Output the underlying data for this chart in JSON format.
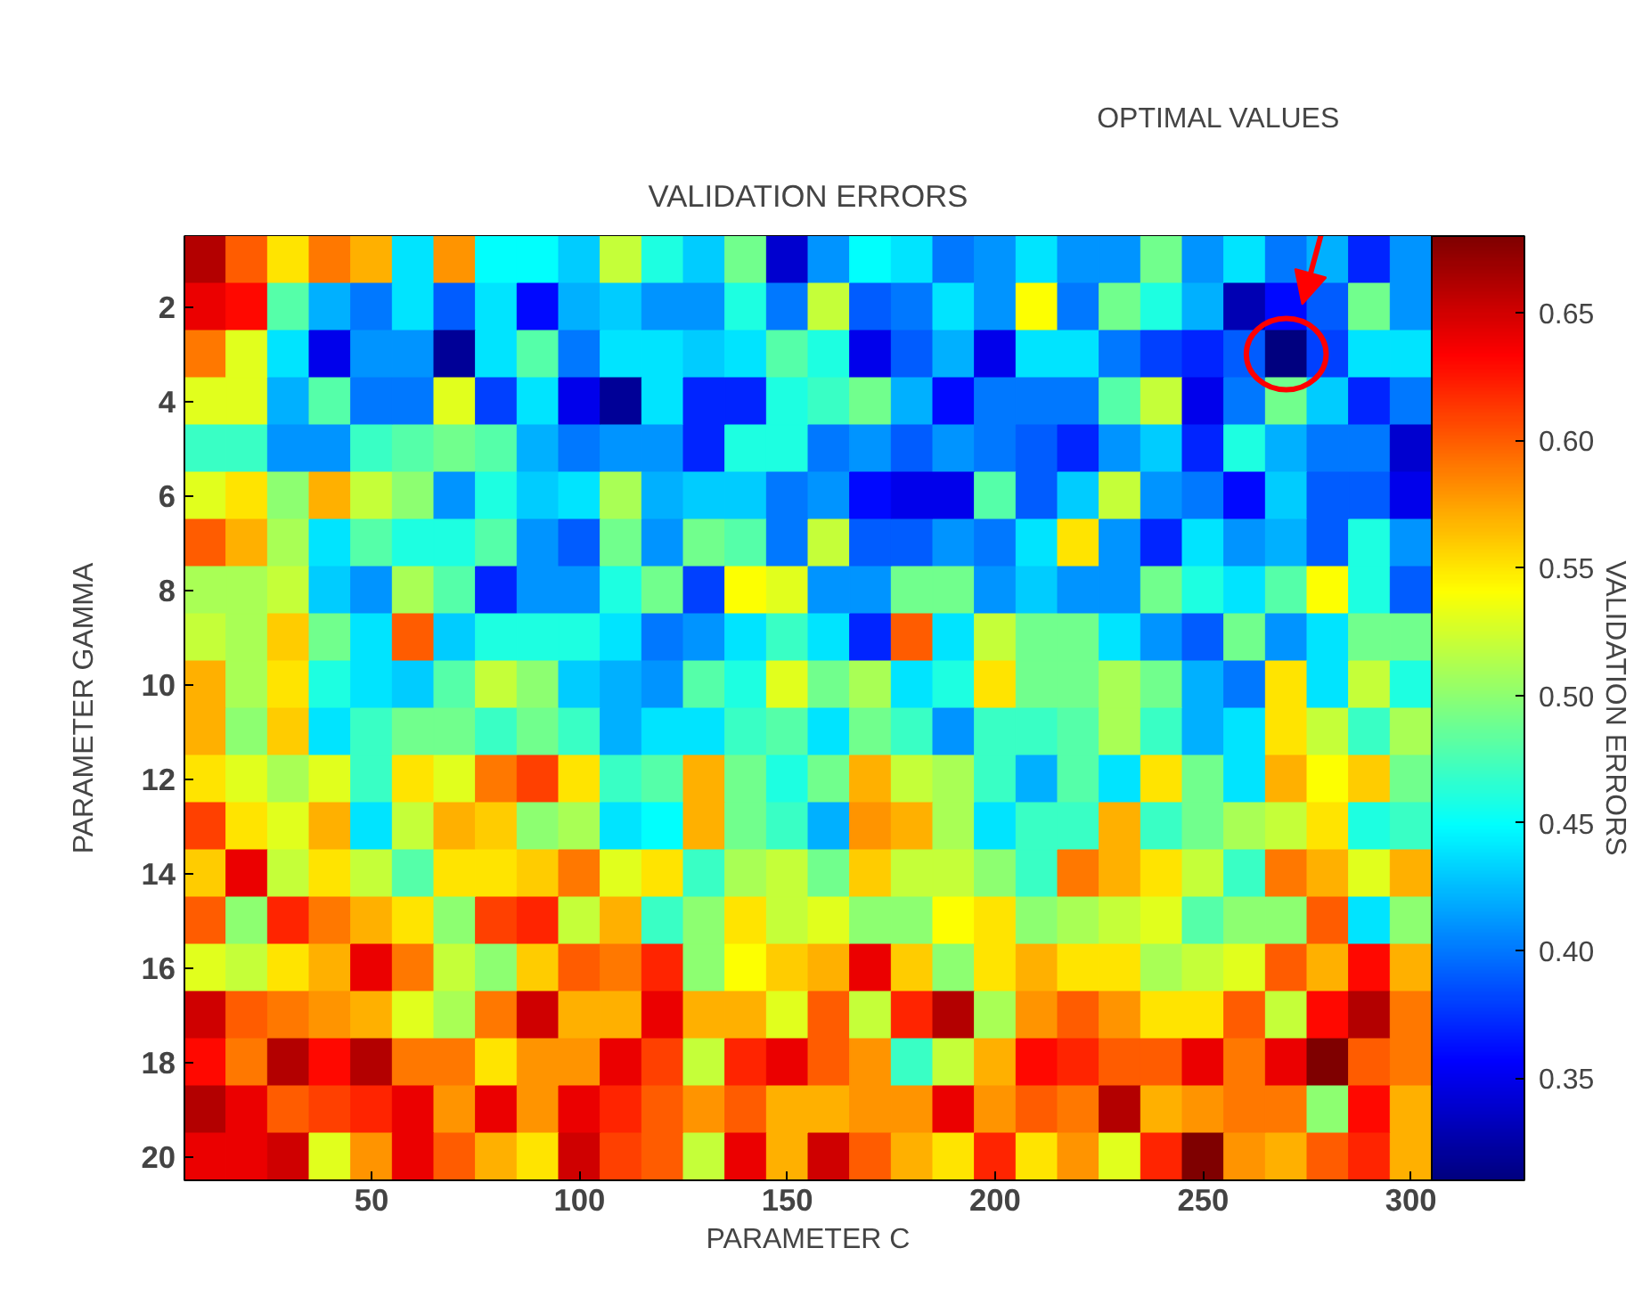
{
  "chart_data": {
    "type": "heatmap",
    "title": "VALIDATION ERRORS",
    "xlabel": "PARAMETER C",
    "ylabel": "PARAMETER GAMMA",
    "clabel": "VALIDATION ERRORS",
    "annotations": [
      "OPTIMAL VALUES"
    ],
    "x": [
      10,
      20,
      30,
      40,
      50,
      60,
      70,
      80,
      90,
      100,
      110,
      120,
      130,
      140,
      150,
      160,
      170,
      180,
      190,
      200,
      210,
      220,
      230,
      240,
      250,
      260,
      270,
      280,
      290,
      300
    ],
    "y": [
      1,
      2,
      3,
      4,
      5,
      6,
      7,
      8,
      9,
      10,
      11,
      12,
      13,
      14,
      15,
      16,
      17,
      18,
      19,
      20
    ],
    "xlim": [
      5,
      305
    ],
    "ylim": [
      20.5,
      0.5
    ],
    "xticks": [
      50,
      100,
      150,
      200,
      250,
      300
    ],
    "yticks": [
      2,
      4,
      6,
      8,
      10,
      12,
      14,
      16,
      18,
      20
    ],
    "clim": [
      0.31,
      0.68
    ],
    "cticks": [
      0.35,
      {
        "value": 0.4,
        "label": "0.40"
      },
      0.45,
      {
        "value": 0.5,
        "label": "0.50"
      },
      0.55,
      {
        "value": 0.6,
        "label": "0.60"
      },
      0.65
    ],
    "cells": [
      [
        0.66,
        0.6,
        0.55,
        0.59,
        0.57,
        0.44,
        0.58,
        0.45,
        0.45,
        0.43,
        0.52,
        0.46,
        0.43,
        0.49,
        0.34,
        0.41,
        0.45,
        0.44,
        0.4,
        0.41,
        0.44,
        0.41,
        0.41,
        0.49,
        0.41,
        0.44,
        0.4,
        0.42,
        0.37,
        0.41
      ],
      [
        0.64,
        0.63,
        0.48,
        0.42,
        0.4,
        0.44,
        0.39,
        0.44,
        0.36,
        0.42,
        0.43,
        0.41,
        0.41,
        0.46,
        0.4,
        0.52,
        0.39,
        0.4,
        0.44,
        0.41,
        0.54,
        0.4,
        0.49,
        0.46,
        0.42,
        0.33,
        0.36,
        0.39,
        0.49,
        0.41
      ],
      [
        0.59,
        0.53,
        0.44,
        0.35,
        0.41,
        0.41,
        0.32,
        0.44,
        0.48,
        0.4,
        0.44,
        0.44,
        0.43,
        0.44,
        0.48,
        0.46,
        0.35,
        0.39,
        0.42,
        0.35,
        0.44,
        0.44,
        0.4,
        0.38,
        0.37,
        0.39,
        0.31,
        0.38,
        0.44,
        0.44
      ],
      [
        0.53,
        0.53,
        0.42,
        0.48,
        0.4,
        0.4,
        0.53,
        0.38,
        0.44,
        0.35,
        0.32,
        0.44,
        0.37,
        0.37,
        0.46,
        0.47,
        0.49,
        0.42,
        0.36,
        0.4,
        0.4,
        0.4,
        0.48,
        0.52,
        0.35,
        0.4,
        0.49,
        0.43,
        0.37,
        0.4
      ],
      [
        0.47,
        0.47,
        0.41,
        0.41,
        0.47,
        0.48,
        0.49,
        0.48,
        0.42,
        0.4,
        0.41,
        0.41,
        0.37,
        0.46,
        0.46,
        0.4,
        0.41,
        0.39,
        0.41,
        0.4,
        0.39,
        0.37,
        0.41,
        0.43,
        0.37,
        0.46,
        0.42,
        0.4,
        0.4,
        0.34
      ],
      [
        0.53,
        0.55,
        0.5,
        0.57,
        0.52,
        0.5,
        0.41,
        0.46,
        0.43,
        0.44,
        0.51,
        0.42,
        0.43,
        0.43,
        0.4,
        0.41,
        0.36,
        0.35,
        0.35,
        0.48,
        0.39,
        0.43,
        0.52,
        0.41,
        0.4,
        0.36,
        0.43,
        0.39,
        0.39,
        0.35
      ],
      [
        0.6,
        0.57,
        0.51,
        0.44,
        0.48,
        0.46,
        0.46,
        0.48,
        0.41,
        0.39,
        0.49,
        0.41,
        0.49,
        0.48,
        0.4,
        0.52,
        0.39,
        0.39,
        0.41,
        0.4,
        0.44,
        0.55,
        0.41,
        0.37,
        0.44,
        0.41,
        0.42,
        0.39,
        0.46,
        0.41
      ],
      [
        0.51,
        0.51,
        0.52,
        0.43,
        0.41,
        0.51,
        0.48,
        0.37,
        0.41,
        0.41,
        0.46,
        0.49,
        0.38,
        0.54,
        0.53,
        0.41,
        0.41,
        0.49,
        0.49,
        0.41,
        0.43,
        0.41,
        0.41,
        0.49,
        0.46,
        0.44,
        0.48,
        0.54,
        0.46,
        0.39
      ],
      [
        0.52,
        0.51,
        0.56,
        0.49,
        0.44,
        0.6,
        0.43,
        0.46,
        0.46,
        0.46,
        0.44,
        0.4,
        0.41,
        0.44,
        0.47,
        0.44,
        0.37,
        0.6,
        0.44,
        0.52,
        0.49,
        0.49,
        0.44,
        0.41,
        0.39,
        0.49,
        0.41,
        0.44,
        0.49,
        0.49
      ],
      [
        0.57,
        0.51,
        0.55,
        0.46,
        0.44,
        0.43,
        0.48,
        0.52,
        0.5,
        0.43,
        0.42,
        0.41,
        0.48,
        0.46,
        0.53,
        0.49,
        0.51,
        0.44,
        0.46,
        0.55,
        0.49,
        0.49,
        0.51,
        0.49,
        0.42,
        0.4,
        0.55,
        0.44,
        0.52,
        0.46
      ],
      [
        0.57,
        0.5,
        0.56,
        0.44,
        0.47,
        0.49,
        0.49,
        0.47,
        0.49,
        0.47,
        0.42,
        0.44,
        0.44,
        0.47,
        0.48,
        0.44,
        0.49,
        0.47,
        0.41,
        0.47,
        0.47,
        0.48,
        0.51,
        0.47,
        0.42,
        0.44,
        0.55,
        0.52,
        0.47,
        0.51
      ],
      [
        0.55,
        0.53,
        0.51,
        0.53,
        0.47,
        0.55,
        0.53,
        0.59,
        0.61,
        0.55,
        0.47,
        0.48,
        0.57,
        0.49,
        0.46,
        0.49,
        0.57,
        0.52,
        0.51,
        0.47,
        0.42,
        0.48,
        0.44,
        0.55,
        0.49,
        0.44,
        0.57,
        0.54,
        0.56,
        0.49
      ],
      [
        0.61,
        0.55,
        0.53,
        0.57,
        0.44,
        0.52,
        0.57,
        0.56,
        0.5,
        0.51,
        0.44,
        0.45,
        0.57,
        0.49,
        0.47,
        0.42,
        0.58,
        0.57,
        0.51,
        0.44,
        0.47,
        0.47,
        0.57,
        0.47,
        0.49,
        0.51,
        0.52,
        0.55,
        0.46,
        0.47
      ],
      [
        0.56,
        0.64,
        0.52,
        0.55,
        0.52,
        0.48,
        0.55,
        0.55,
        0.56,
        0.59,
        0.53,
        0.55,
        0.47,
        0.51,
        0.52,
        0.49,
        0.56,
        0.52,
        0.52,
        0.5,
        0.47,
        0.59,
        0.57,
        0.55,
        0.52,
        0.47,
        0.59,
        0.57,
        0.53,
        0.57
      ],
      [
        0.6,
        0.5,
        0.62,
        0.59,
        0.57,
        0.55,
        0.5,
        0.61,
        0.62,
        0.52,
        0.57,
        0.47,
        0.5,
        0.55,
        0.52,
        0.53,
        0.5,
        0.5,
        0.54,
        0.55,
        0.5,
        0.51,
        0.52,
        0.53,
        0.48,
        0.5,
        0.5,
        0.6,
        0.44,
        0.5
      ],
      [
        0.53,
        0.52,
        0.55,
        0.57,
        0.64,
        0.59,
        0.52,
        0.5,
        0.56,
        0.6,
        0.59,
        0.62,
        0.5,
        0.54,
        0.56,
        0.57,
        0.64,
        0.56,
        0.5,
        0.55,
        0.57,
        0.55,
        0.55,
        0.51,
        0.52,
        0.53,
        0.6,
        0.57,
        0.63,
        0.57
      ],
      [
        0.65,
        0.6,
        0.59,
        0.58,
        0.57,
        0.53,
        0.51,
        0.59,
        0.65,
        0.57,
        0.57,
        0.64,
        0.57,
        0.57,
        0.53,
        0.6,
        0.52,
        0.62,
        0.66,
        0.51,
        0.58,
        0.6,
        0.58,
        0.55,
        0.55,
        0.6,
        0.52,
        0.63,
        0.66,
        0.59
      ],
      [
        0.63,
        0.59,
        0.66,
        0.63,
        0.66,
        0.59,
        0.59,
        0.55,
        0.58,
        0.58,
        0.64,
        0.61,
        0.52,
        0.62,
        0.64,
        0.6,
        0.58,
        0.47,
        0.52,
        0.57,
        0.63,
        0.62,
        0.6,
        0.6,
        0.64,
        0.59,
        0.64,
        0.68,
        0.6,
        0.59
      ],
      [
        0.66,
        0.64,
        0.6,
        0.61,
        0.62,
        0.64,
        0.58,
        0.64,
        0.58,
        0.64,
        0.62,
        0.6,
        0.58,
        0.6,
        0.57,
        0.57,
        0.58,
        0.58,
        0.64,
        0.58,
        0.6,
        0.59,
        0.66,
        0.57,
        0.58,
        0.59,
        0.59,
        0.5,
        0.63,
        0.57
      ],
      [
        0.64,
        0.64,
        0.65,
        0.53,
        0.58,
        0.64,
        0.6,
        0.57,
        0.55,
        0.65,
        0.61,
        0.6,
        0.52,
        0.64,
        0.57,
        0.65,
        0.6,
        0.57,
        0.55,
        0.62,
        0.55,
        0.58,
        0.53,
        0.62,
        0.68,
        0.58,
        0.57,
        0.6,
        0.62,
        0.57
      ]
    ]
  }
}
